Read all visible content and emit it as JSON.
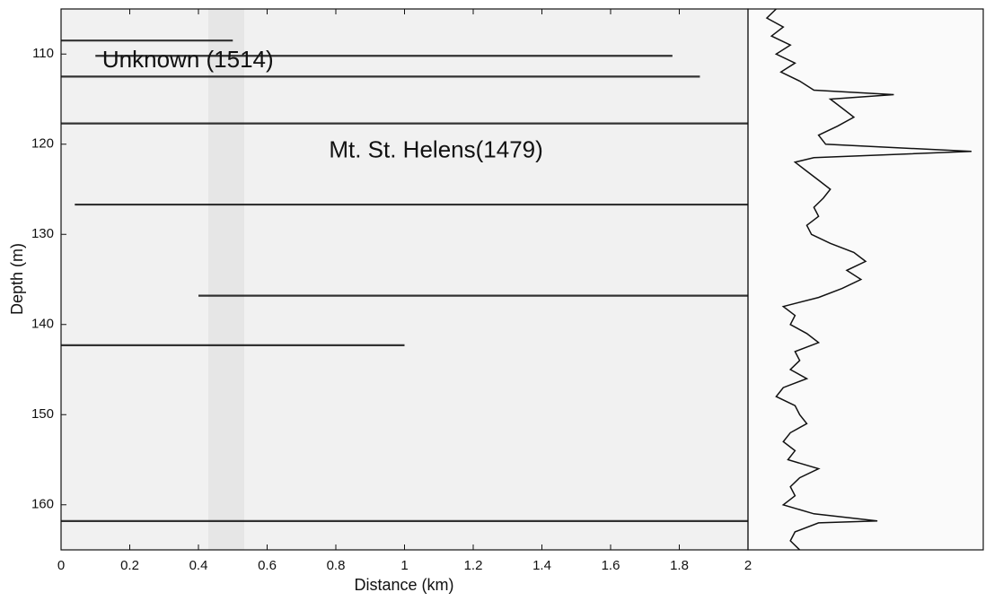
{
  "chart_data": {
    "type": "profile",
    "xlabel": "Distance (km)",
    "ylabel": "Depth (m)",
    "xlim": [
      0,
      2
    ],
    "xticks": [
      0,
      0.2,
      0.4,
      0.6,
      0.8,
      1,
      1.2,
      1.4,
      1.6,
      1.8,
      2
    ],
    "ylim": [
      105,
      165
    ],
    "yticks": [
      110,
      120,
      130,
      140,
      150,
      160
    ],
    "color": "#111111",
    "annotations": [
      {
        "text": "Unknown (1514)",
        "depth": 110.8,
        "x": 0.12
      },
      {
        "text": "Mt. St. Helens(1479)",
        "depth": 120.8,
        "x": 0.78
      }
    ],
    "layers": [
      {
        "depth": 108.5,
        "x0": 0.0,
        "x1": 0.5
      },
      {
        "depth": 110.2,
        "x0": 0.1,
        "x1": 1.78
      },
      {
        "depth": 112.5,
        "x0": 0.0,
        "x1": 1.86
      },
      {
        "depth": 117.7,
        "x0": 0.0,
        "x1": 2.0
      },
      {
        "depth": 126.7,
        "x0": 0.04,
        "x1": 2.0
      },
      {
        "depth": 136.8,
        "x0": 0.4,
        "x1": 2.0
      },
      {
        "depth": 142.3,
        "x0": 0.0,
        "x1": 1.0
      },
      {
        "depth": 161.8,
        "x0": 0.0,
        "x1": 2.0
      }
    ],
    "trace": {
      "xlim": [
        0,
        1
      ],
      "depths": [
        105,
        106,
        107,
        108,
        109,
        110,
        111,
        112,
        113,
        114,
        114.5,
        115,
        116,
        117,
        118,
        119,
        120,
        120.8,
        121.5,
        122,
        123,
        124,
        125,
        126,
        127,
        128,
        129,
        130,
        131,
        132,
        133,
        134,
        135,
        136,
        137,
        138,
        139,
        140,
        141,
        142,
        143,
        144,
        145,
        146,
        147,
        148,
        149,
        150,
        151,
        152,
        153,
        154,
        155,
        156,
        157,
        158,
        159,
        160,
        161,
        161.8,
        162,
        163,
        164,
        165
      ],
      "values": [
        0.12,
        0.08,
        0.15,
        0.1,
        0.18,
        0.12,
        0.2,
        0.14,
        0.22,
        0.28,
        0.62,
        0.35,
        0.4,
        0.45,
        0.38,
        0.3,
        0.33,
        0.95,
        0.28,
        0.2,
        0.25,
        0.3,
        0.35,
        0.32,
        0.28,
        0.3,
        0.25,
        0.27,
        0.35,
        0.45,
        0.5,
        0.42,
        0.48,
        0.4,
        0.3,
        0.15,
        0.2,
        0.18,
        0.25,
        0.3,
        0.2,
        0.22,
        0.18,
        0.25,
        0.15,
        0.12,
        0.2,
        0.22,
        0.25,
        0.18,
        0.15,
        0.2,
        0.17,
        0.3,
        0.22,
        0.18,
        0.2,
        0.15,
        0.28,
        0.55,
        0.3,
        0.2,
        0.18,
        0.22
      ]
    }
  }
}
